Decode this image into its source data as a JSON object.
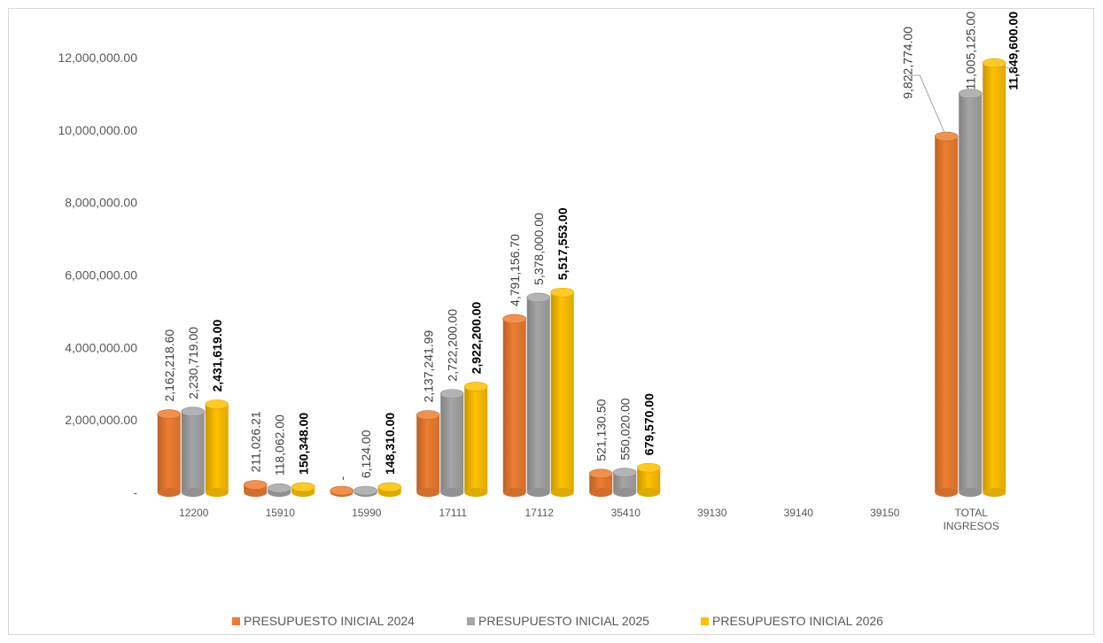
{
  "chart_data": {
    "type": "bar",
    "categories": [
      "12200",
      "15910",
      "15990",
      "17111",
      "17112",
      "35410",
      "39130",
      "39140",
      "39150",
      "TOTAL INGRESOS"
    ],
    "category_lines": [
      [
        "12200"
      ],
      [
        "15910"
      ],
      [
        "15990"
      ],
      [
        "17111"
      ],
      [
        "17112"
      ],
      [
        "35410"
      ],
      [
        "39130"
      ],
      [
        "39140"
      ],
      [
        "39150"
      ],
      [
        "TOTAL",
        "INGRESOS"
      ]
    ],
    "series": [
      {
        "name": "PRESUPUESTO INICIAL 2024",
        "color": "#ED7D31",
        "values": [
          2162218.6,
          211026.21,
          0,
          2137241.99,
          4791156.7,
          521130.5,
          null,
          null,
          null,
          9822774.0
        ],
        "labels": [
          "2,162,218.60",
          "211,026.21",
          "-",
          "2,137,241.99",
          "4,791,156.70",
          "521,130.50",
          "",
          "",
          "",
          "9,822,774.00"
        ]
      },
      {
        "name": "PRESUPUESTO INICIAL 2025",
        "color": "#A5A5A5",
        "values": [
          2230719.0,
          118062.0,
          6124.0,
          2722200.0,
          5378000.0,
          550020.0,
          null,
          null,
          null,
          11005125.0
        ],
        "labels": [
          "2,230,719.00",
          "118,062.00",
          "6,124.00",
          "2,722,200.00",
          "5,378,000.00",
          "550,020.00",
          "",
          "",
          "",
          "11,005,125.00"
        ]
      },
      {
        "name": "PRESUPUESTO INICIAL 2026",
        "color": "#FFC000",
        "values": [
          2431619.0,
          150348.0,
          148310.0,
          2922200.0,
          5517553.0,
          679570.0,
          null,
          null,
          null,
          11849600.0
        ],
        "labels": [
          "2,431,619.00",
          "150,348.00",
          "148,310.00",
          "2,922,200.00",
          "5,517,553.00",
          "679,570.00",
          "",
          "",
          "",
          "11,849,600.00"
        ]
      }
    ],
    "y_ticks": [
      {
        "value": 0,
        "label": "-"
      },
      {
        "value": 2000000,
        "label": "2,000,000.00"
      },
      {
        "value": 4000000,
        "label": "4,000,000.00"
      },
      {
        "value": 6000000,
        "label": "6,000,000.00"
      },
      {
        "value": 8000000,
        "label": "8,000,000.00"
      },
      {
        "value": 10000000,
        "label": "10,000,000.00"
      },
      {
        "value": 12000000,
        "label": "12,000,000.00"
      }
    ],
    "ylim": [
      0,
      12000000
    ],
    "bar_style": "3d-cylinder",
    "grid": false,
    "legend_position": "bottom"
  }
}
